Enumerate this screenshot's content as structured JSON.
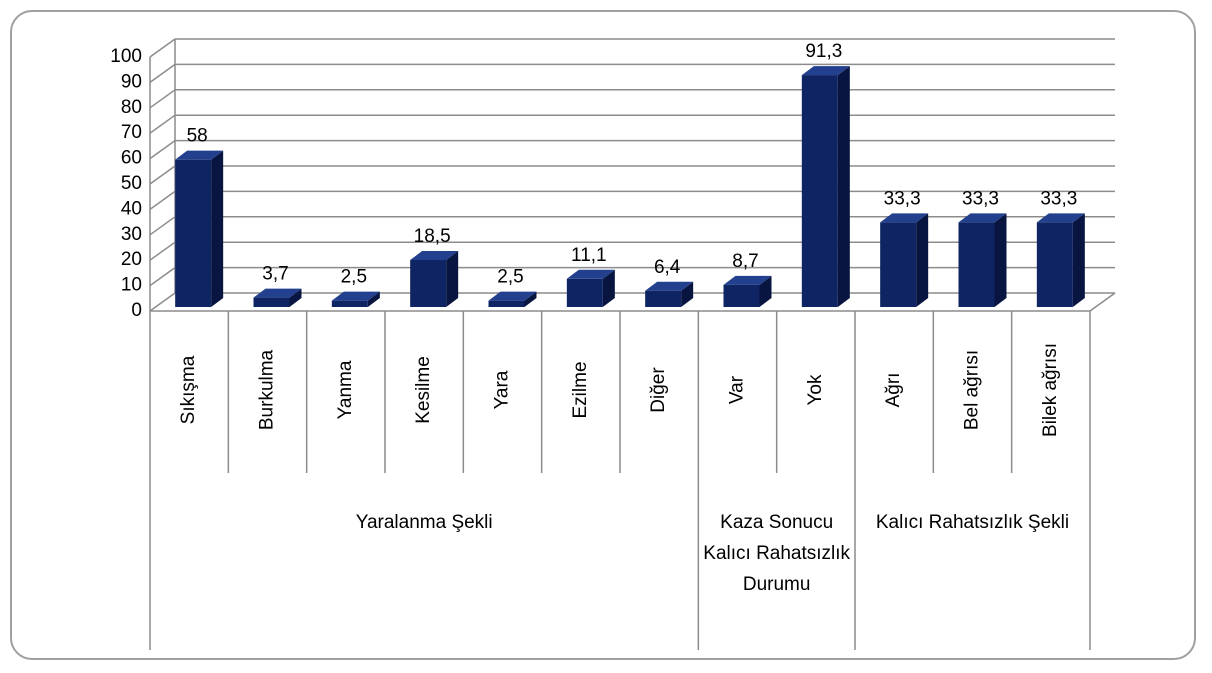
{
  "chart_data": {
    "type": "bar",
    "color": "#0f2463",
    "ylim": [
      0,
      100
    ],
    "yticks": [
      0,
      10,
      20,
      30,
      40,
      50,
      60,
      70,
      80,
      90,
      100
    ],
    "grid": true,
    "groups": [
      {
        "name": "Yaralanma Şekli",
        "categories": [
          "Sıkışma",
          "Burkulma",
          "Yanma",
          "Kesilme",
          "Yara",
          "Ezilme",
          "Diğer"
        ],
        "values": [
          58,
          3.7,
          2.5,
          18.5,
          2.5,
          11.1,
          6.4
        ],
        "value_labels": [
          "58",
          "3,7",
          "2,5",
          "18,5",
          "2,5",
          "11,1",
          "6,4"
        ]
      },
      {
        "name": "Kaza Sonucu Kalıcı Rahatsızlık Durumu",
        "categories": [
          "Var",
          "Yok"
        ],
        "values": [
          8.7,
          91.3
        ],
        "value_labels": [
          "8,7",
          "91,3"
        ]
      },
      {
        "name": "Kalıcı Rahatsızlık Şekli",
        "categories": [
          "Ağrı",
          "Bel ağrısı",
          "Bilek ağrısı"
        ],
        "values": [
          33.3,
          33.3,
          33.3
        ],
        "value_labels": [
          "33,3",
          "33,3",
          "33,3"
        ]
      }
    ]
  }
}
